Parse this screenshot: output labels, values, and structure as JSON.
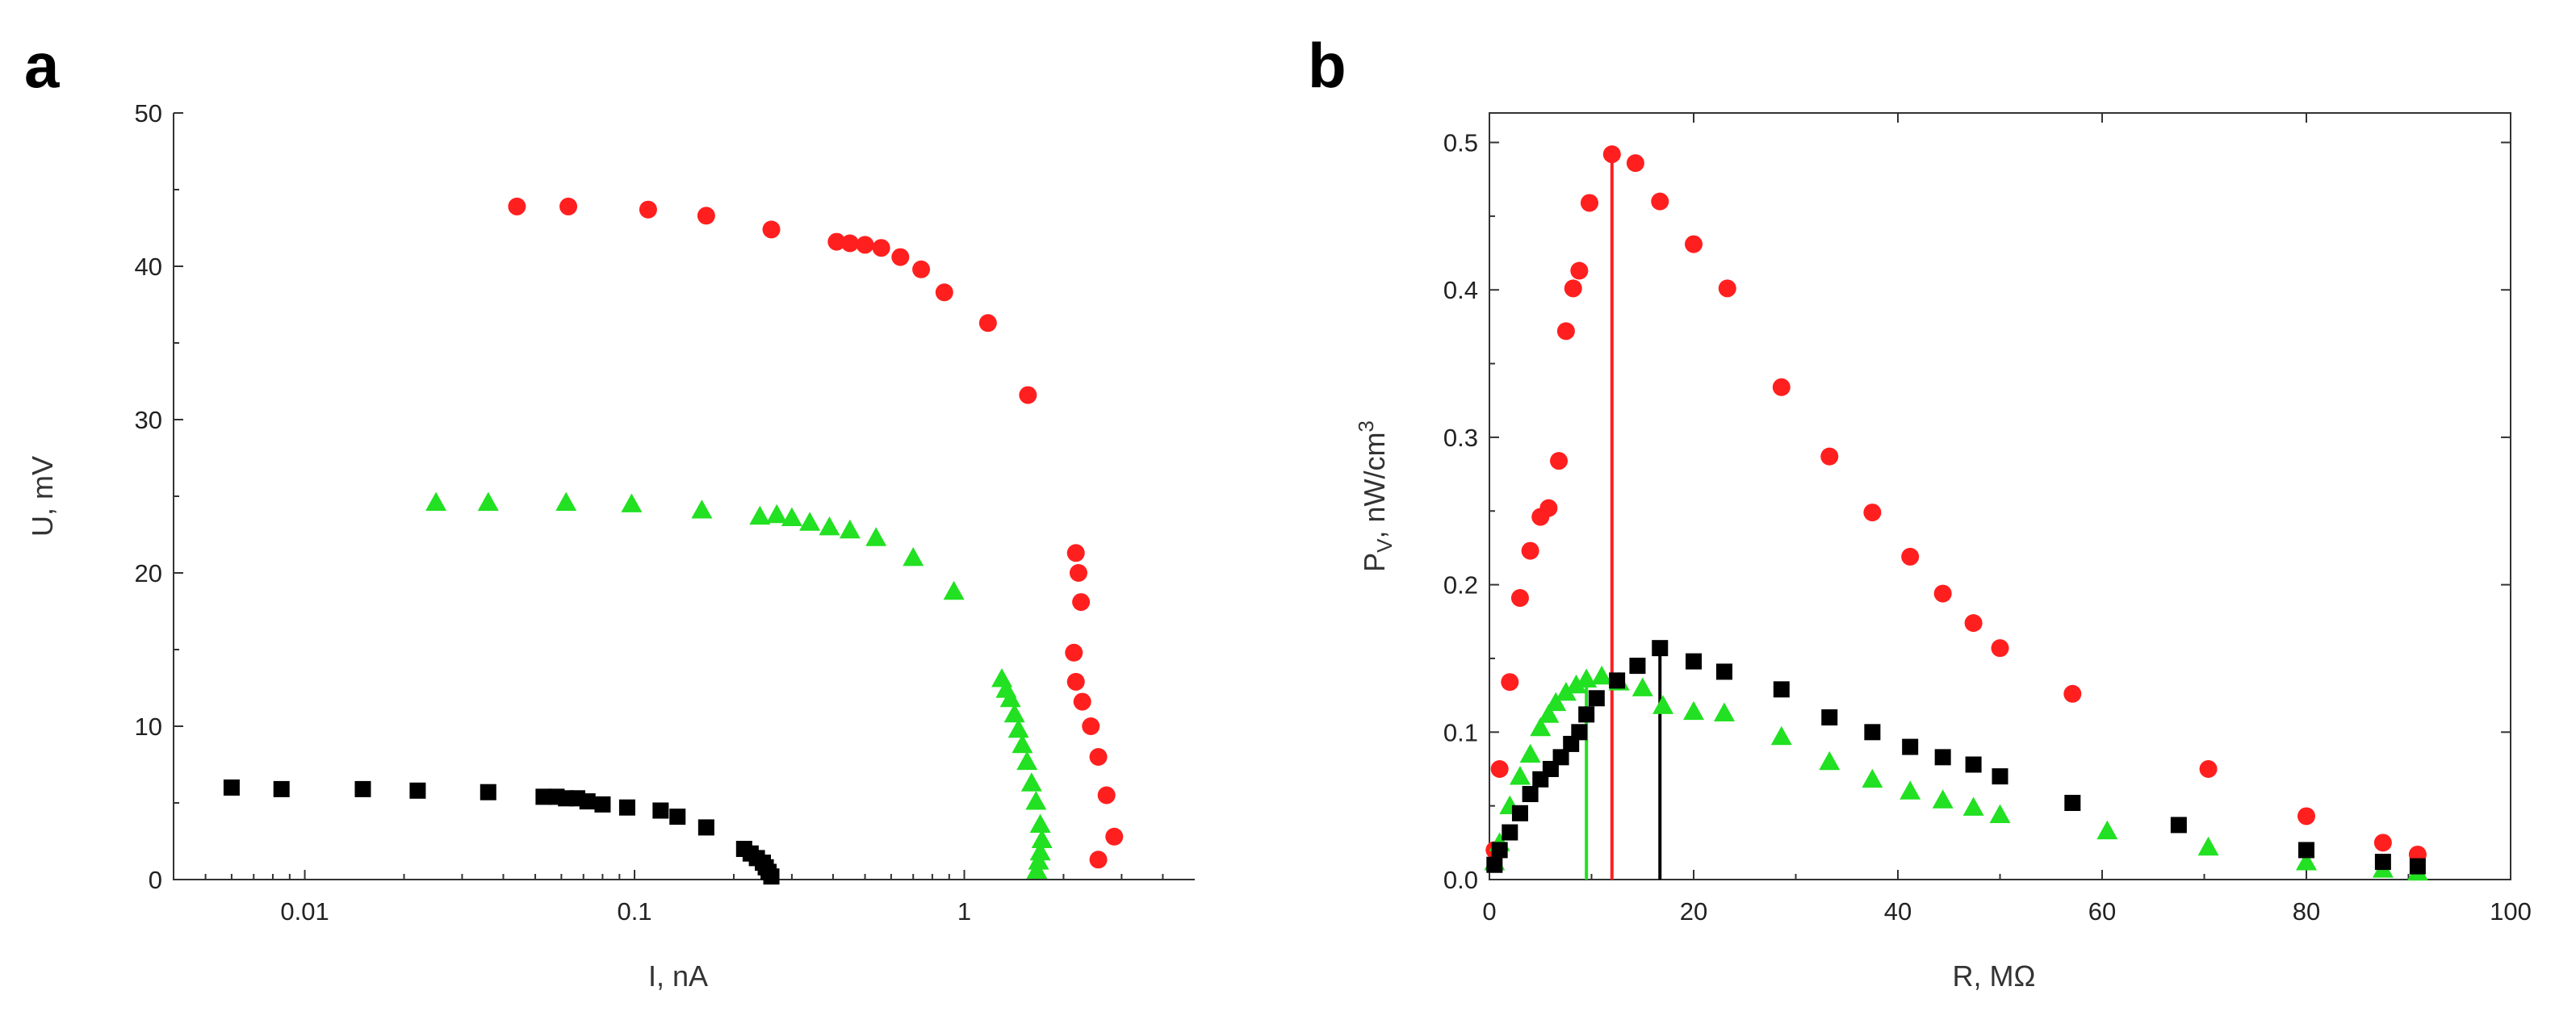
{
  "chart_data": [
    {
      "panel": "a",
      "type": "scatter",
      "xlabel": "I, nA",
      "ylabel": "U, mV",
      "xscale": "log",
      "xlim": [
        0.004,
        5
      ],
      "ylim": [
        0,
        50
      ],
      "xticks": [
        {
          "value": 0.01,
          "label": "0.01"
        },
        {
          "value": 0.1,
          "label": "0.1"
        },
        {
          "value": 1,
          "label": "1"
        }
      ],
      "yticks": [
        {
          "value": 0,
          "label": "0"
        },
        {
          "value": 10,
          "label": "10"
        },
        {
          "value": 20,
          "label": "20"
        },
        {
          "value": 30,
          "label": "30"
        },
        {
          "value": 40,
          "label": "40"
        },
        {
          "value": 50,
          "label": "50"
        }
      ],
      "series": [
        {
          "name": "red",
          "marker": "circle",
          "color": "#ff1f1f",
          "x": [
            0.044,
            0.063,
            0.11,
            0.165,
            0.26,
            0.41,
            0.45,
            0.5,
            0.56,
            0.64,
            0.74,
            0.87,
            1.18,
            1.56,
            2.18,
            2.22,
            2.26,
            2.15,
            2.18,
            2.28,
            2.42,
            2.55,
            2.7,
            2.85,
            2.55
          ],
          "y": [
            43.9,
            43.9,
            43.7,
            43.3,
            42.4,
            41.6,
            41.5,
            41.4,
            41.2,
            40.6,
            39.8,
            38.3,
            36.3,
            31.6,
            21.3,
            20.0,
            18.1,
            14.8,
            12.9,
            11.6,
            10.0,
            8.0,
            5.5,
            2.8,
            1.3
          ]
        },
        {
          "name": "green",
          "marker": "triangle",
          "color": "#22e022",
          "x": [
            0.025,
            0.036,
            0.062,
            0.098,
            0.16,
            0.24,
            0.27,
            0.3,
            0.34,
            0.39,
            0.45,
            0.54,
            0.7,
            0.93,
            1.3,
            1.34,
            1.38,
            1.42,
            1.46,
            1.5,
            1.55,
            1.6,
            1.65,
            1.7,
            1.72,
            1.7,
            1.68,
            1.66
          ],
          "y": [
            24.6,
            24.6,
            24.6,
            24.5,
            24.1,
            23.7,
            23.8,
            23.6,
            23.3,
            23.0,
            22.8,
            22.3,
            21.0,
            18.8,
            13.1,
            12.4,
            11.8,
            10.8,
            9.8,
            8.8,
            7.7,
            6.3,
            5.1,
            3.6,
            2.6,
            1.8,
            1.2,
            0.6
          ]
        },
        {
          "name": "black",
          "marker": "square",
          "color": "#000000",
          "x": [
            0.006,
            0.0085,
            0.015,
            0.022,
            0.036,
            0.053,
            0.058,
            0.062,
            0.067,
            0.072,
            0.08,
            0.095,
            0.12,
            0.135,
            0.165,
            0.215,
            0.225,
            0.235,
            0.245,
            0.25,
            0.255,
            0.26
          ],
          "y": [
            6.0,
            5.9,
            5.9,
            5.8,
            5.7,
            5.4,
            5.4,
            5.3,
            5.3,
            5.1,
            4.9,
            4.7,
            4.5,
            4.1,
            3.4,
            2.0,
            1.7,
            1.4,
            1.1,
            0.8,
            0.5,
            0.2
          ]
        }
      ]
    },
    {
      "panel": "b",
      "type": "scatter",
      "xlabel": "R, MΩ",
      "ylabel": "P",
      "ylabel_sub": "V",
      "ylabel_units": ", nW/cm",
      "ylabel_sup": "3",
      "xlim": [
        0,
        100
      ],
      "ylim": [
        0,
        0.52
      ],
      "xticks": [
        {
          "value": 0,
          "label": "0"
        },
        {
          "value": 20,
          "label": "20"
        },
        {
          "value": 40,
          "label": "40"
        },
        {
          "value": 60,
          "label": "60"
        },
        {
          "value": 80,
          "label": "80"
        },
        {
          "value": 100,
          "label": "100"
        }
      ],
      "yticks": [
        {
          "value": 0,
          "label": "0.0"
        },
        {
          "value": 0.1,
          "label": "0.1"
        },
        {
          "value": 0.2,
          "label": "0.2"
        },
        {
          "value": 0.3,
          "label": "0.3"
        },
        {
          "value": 0.4,
          "label": "0.4"
        },
        {
          "value": 0.5,
          "label": "0.5"
        }
      ],
      "series": [
        {
          "name": "red",
          "marker": "circle",
          "color": "#ff1f1f",
          "x": [
            0.5,
            1,
            2,
            3,
            4,
            5,
            5.8,
            6.8,
            7.5,
            8.2,
            8.8,
            9.8,
            12,
            14.3,
            16.7,
            20,
            23.3,
            28.6,
            33.3,
            37.5,
            41.2,
            44.4,
            47.4,
            50,
            57.1,
            70.4,
            80,
            87.5,
            90.9
          ],
          "y": [
            0.02,
            0.075,
            0.134,
            0.191,
            0.223,
            0.246,
            0.252,
            0.284,
            0.372,
            0.401,
            0.413,
            0.459,
            0.492,
            0.486,
            0.46,
            0.431,
            0.401,
            0.334,
            0.287,
            0.249,
            0.219,
            0.194,
            0.174,
            0.157,
            0.126,
            0.075,
            0.043,
            0.025,
            0.017
          ]
        },
        {
          "name": "green",
          "marker": "triangle",
          "color": "#22e022",
          "x": [
            0.5,
            1,
            2,
            3,
            4,
            5,
            5.8,
            6.5,
            7.5,
            8.5,
            9.5,
            11,
            12.7,
            15,
            17,
            20,
            23,
            28.6,
            33.3,
            37.5,
            41.2,
            44.4,
            47.4,
            50,
            60.5,
            70.4,
            80,
            87.5,
            90.9
          ],
          "y": [
            0.012,
            0.025,
            0.05,
            0.07,
            0.085,
            0.103,
            0.112,
            0.12,
            0.127,
            0.132,
            0.136,
            0.138,
            0.134,
            0.13,
            0.118,
            0.114,
            0.113,
            0.097,
            0.08,
            0.068,
            0.06,
            0.054,
            0.049,
            0.044,
            0.033,
            0.022,
            0.012,
            0.007,
            0.005
          ]
        },
        {
          "name": "black",
          "marker": "square",
          "color": "#000000",
          "x": [
            0.5,
            1,
            2,
            3,
            4,
            5,
            6,
            7,
            8,
            8.8,
            9.5,
            10.5,
            12.5,
            14.5,
            16.7,
            20,
            23,
            28.6,
            33.3,
            37.5,
            41.2,
            44.4,
            47.4,
            50,
            57.1,
            67.5,
            80,
            87.5,
            90.9
          ],
          "y": [
            0.01,
            0.02,
            0.032,
            0.045,
            0.058,
            0.068,
            0.075,
            0.083,
            0.092,
            0.1,
            0.112,
            0.123,
            0.135,
            0.145,
            0.157,
            0.148,
            0.141,
            0.129,
            0.11,
            0.1,
            0.09,
            0.083,
            0.078,
            0.07,
            0.052,
            0.037,
            0.02,
            0.012,
            0.009
          ]
        }
      ],
      "vlines": [
        {
          "x": 12.0,
          "y": 0.492,
          "color": "#ff1f1f"
        },
        {
          "x": 9.5,
          "y": 0.136,
          "color": "#22e022"
        },
        {
          "x": 16.7,
          "y": 0.157,
          "color": "#000000"
        }
      ]
    }
  ]
}
